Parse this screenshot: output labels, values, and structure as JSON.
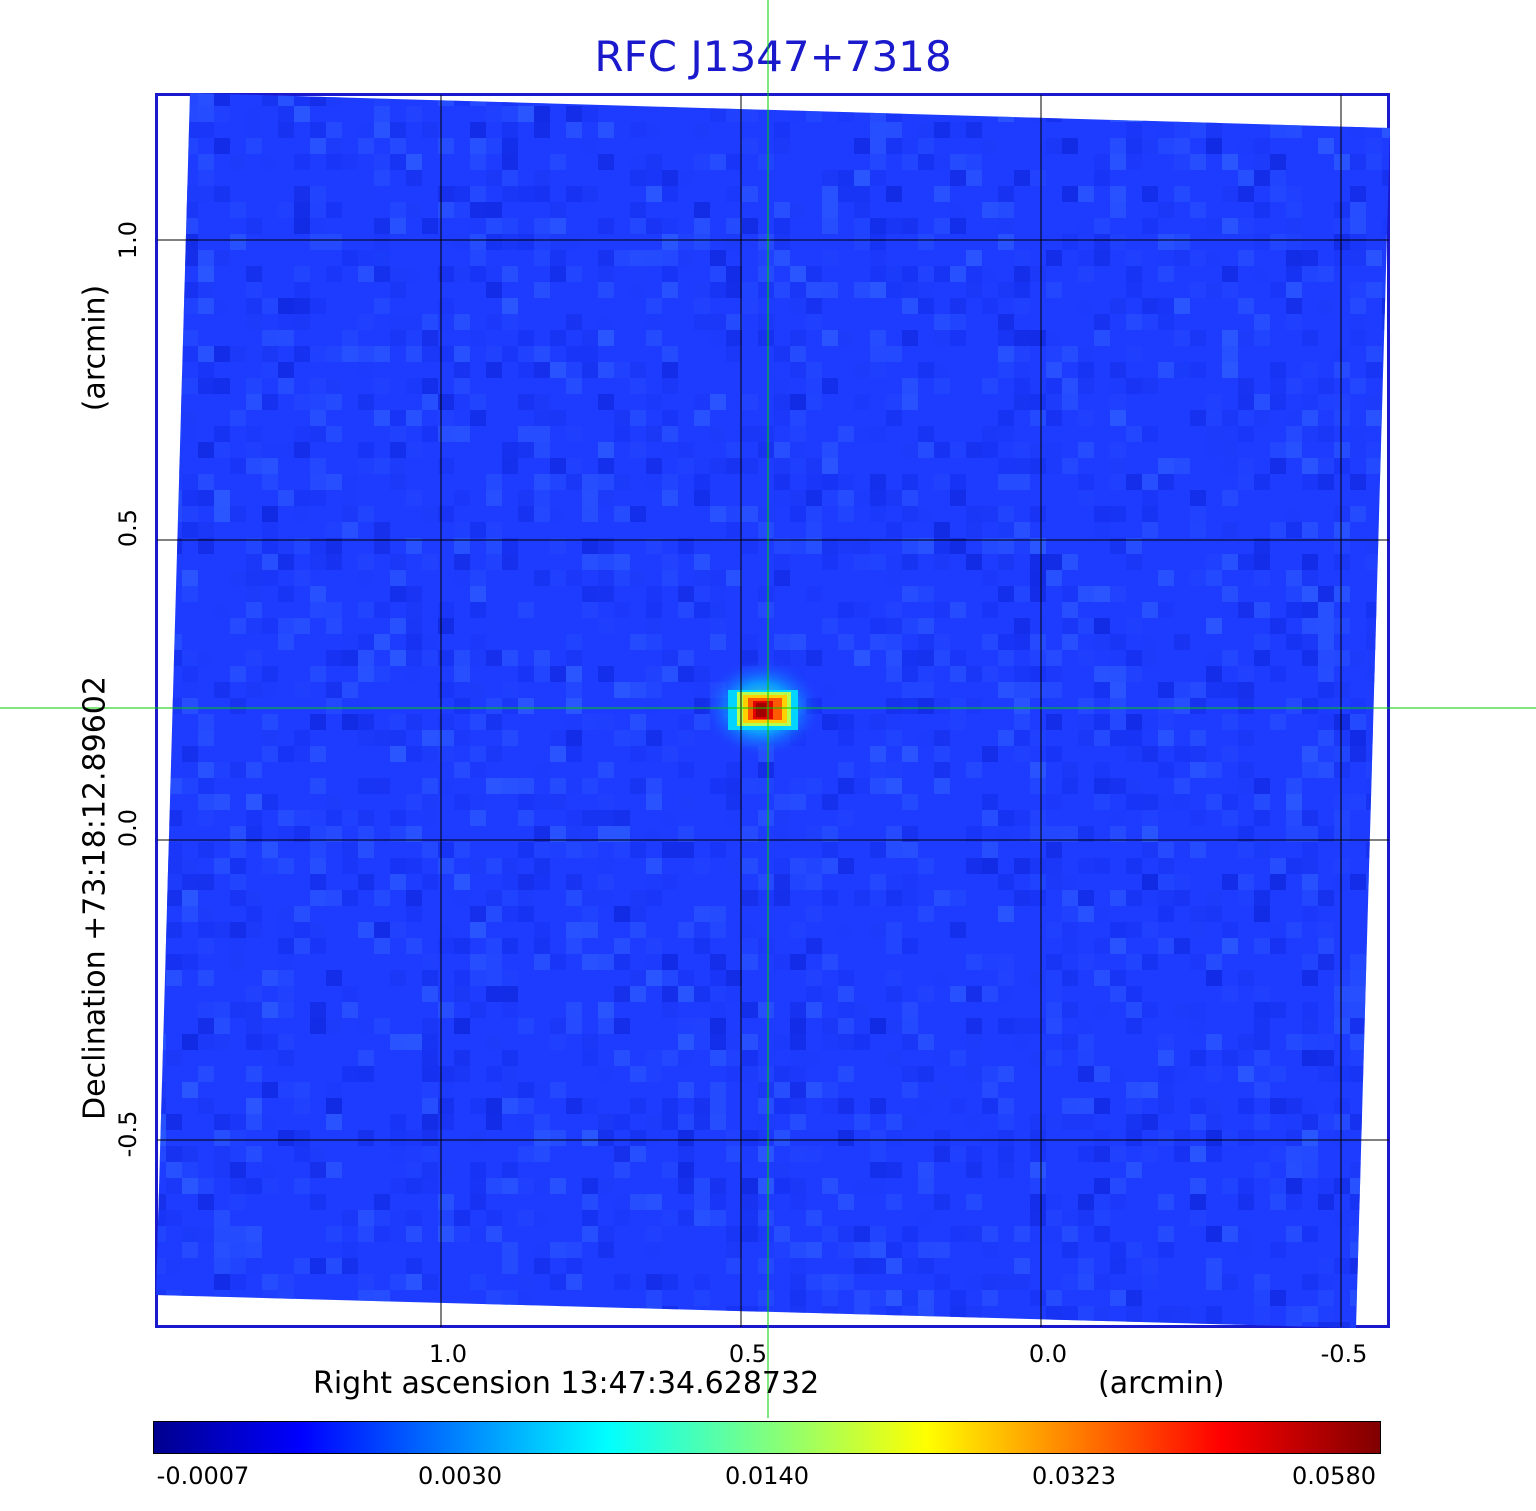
{
  "title": "RFC J1347+7318",
  "axes": {
    "x_label": "Right ascension  13:47:34.628732",
    "x_unit": "(arcmin)",
    "y_label": "Declination  +73:18:12.89602",
    "y_unit": "(arcmin)",
    "x_ticks": [
      "1.0",
      "0.5",
      "0.0",
      "-0.5"
    ],
    "y_ticks": [
      "1.0",
      "0.5",
      "0.0",
      "-0.5"
    ]
  },
  "colorbar": {
    "colormap": "jet",
    "tick_labels": [
      "-0.0007",
      "0.0030",
      "0.0140",
      "0.0323",
      "0.0580"
    ]
  },
  "colors": {
    "frame": "#1a1acc",
    "title": "#1a1acc",
    "crosshair": "#00cc00",
    "grid": "#000000",
    "background_map": "#1e3cff"
  },
  "source": {
    "ra_offset_arcmin": 0.46,
    "dec_offset_arcmin": 0.22,
    "peak": 0.058
  }
}
